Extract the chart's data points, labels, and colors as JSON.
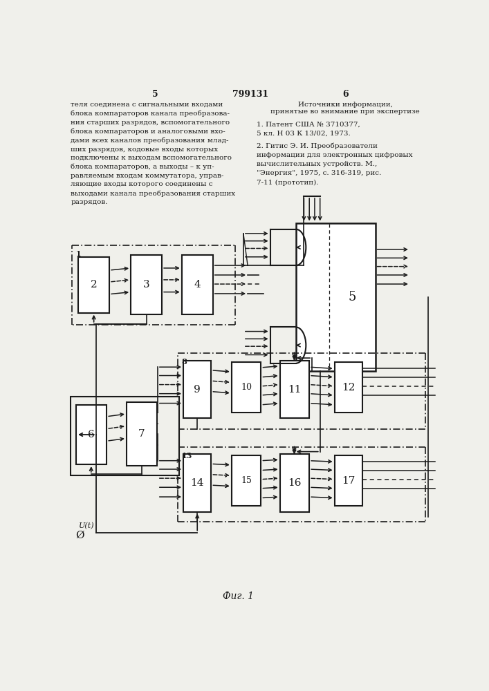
{
  "background_color": "#f0f0eb",
  "line_color": "#1a1a1a",
  "text_color": "#1a1a1a",
  "fig_caption": "Фиг. 1",
  "signal_label": "U(t)",
  "ground_label": "Ø"
}
